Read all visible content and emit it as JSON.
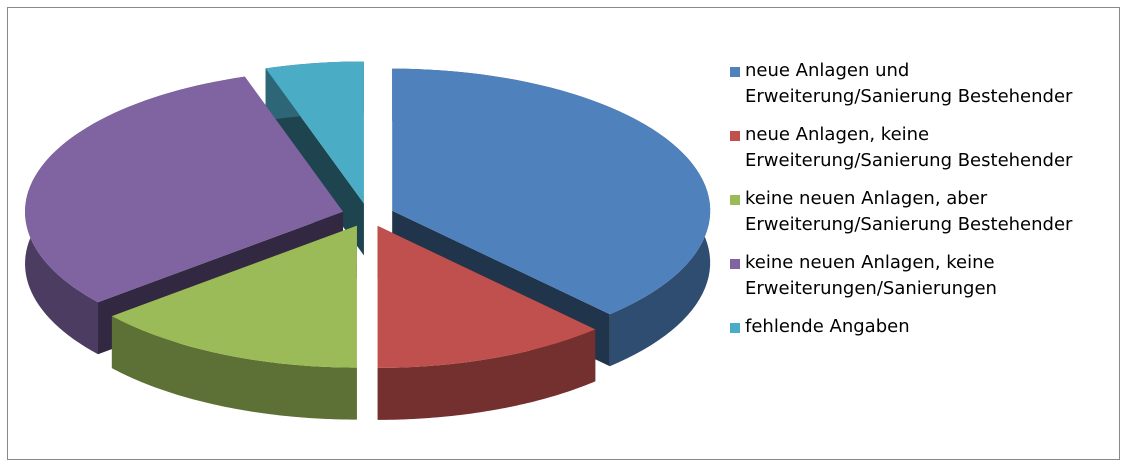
{
  "chart_data": {
    "type": "pie",
    "categories": [
      "neue Anlagen und Erweiterung/Sanierung Bestehender",
      "neue Anlagen, keine Erweiterung/Sanierung Bestehender",
      "keine neuen Anlagen, aber Erweiterung/Sanierung Bestehender",
      "keine neuen Anlagen, keine Erweiterungen/Sanierungen",
      "fehlende Angaben"
    ],
    "values": [
      38,
      12,
      14,
      31,
      5
    ],
    "colors": [
      "#4f81bd",
      "#c0504d",
      "#9bbb59",
      "#8064a2",
      "#4bacc6"
    ],
    "legend": "right"
  }
}
